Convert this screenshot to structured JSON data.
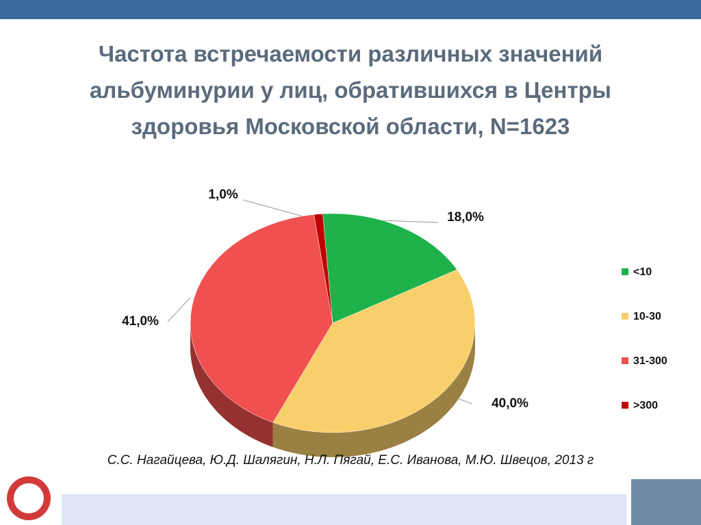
{
  "chart_data": {
    "type": "pie",
    "title": "Частота встречаемости различных значений альбуминурии у лиц, обратившихся в Центры здоровья Московской области, N=1623",
    "categories": [
      "<10",
      "10-30",
      "31-300",
      ">300"
    ],
    "values": [
      18,
      40,
      41,
      1
    ],
    "value_labels": [
      "18,0%",
      "40,0%",
      "41,0%",
      "1,0%"
    ],
    "colors": [
      "#1db24a",
      "#f9cf6b",
      "#f0504f",
      "#c00000"
    ],
    "legend": "right"
  },
  "source": "С.С. Нагайцева, Ю.Д. Шалягин, Н.Л. Пягай, Е.С. Иванова, М.Ю. Швецов, 2013 г"
}
